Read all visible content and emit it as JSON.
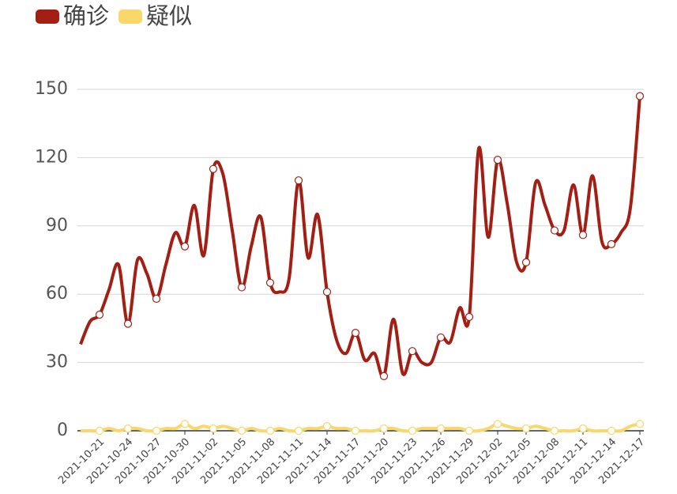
{
  "chart_data": {
    "type": "line",
    "categories": [
      null,
      null,
      "2021-10-21",
      null,
      null,
      "2021-10-24",
      null,
      null,
      "2021-10-27",
      null,
      null,
      "2021-10-30",
      null,
      null,
      "2021-11-02",
      null,
      null,
      "2021-11-05",
      null,
      null,
      "2021-11-08",
      null,
      null,
      "2021-11-11",
      null,
      null,
      "2021-11-14",
      null,
      null,
      "2021-11-17",
      null,
      null,
      "2021-11-20",
      null,
      null,
      "2021-11-23",
      null,
      null,
      "2021-11-26",
      null,
      null,
      "2021-11-29",
      null,
      null,
      "2021-12-02",
      null,
      null,
      "2021-12-05",
      null,
      null,
      "2021-12-08",
      null,
      null,
      "2021-12-11",
      null,
      null,
      "2021-12-14",
      null,
      null,
      "2021-12-17"
    ],
    "series": [
      {
        "name": "确诊",
        "color": "#a31f14",
        "values": [
          38,
          48,
          51,
          62,
          73,
          47,
          75,
          69,
          58,
          73,
          87,
          81,
          99,
          77,
          115,
          113,
          88,
          63,
          81,
          94,
          65,
          61,
          67,
          110,
          76,
          95,
          61,
          40,
          34,
          43,
          31,
          34,
          24,
          49,
          25,
          35,
          30,
          30,
          41,
          39,
          54,
          50,
          124,
          85,
          119,
          100,
          74,
          74,
          109,
          99,
          88,
          88,
          108,
          86,
          112,
          83,
          82,
          87,
          98,
          147
        ]
      },
      {
        "name": "疑似",
        "color": "#fad76a",
        "values": [
          0,
          0,
          0,
          1,
          0,
          1,
          1,
          0,
          0,
          1,
          1,
          3,
          1,
          2,
          1,
          2,
          1,
          0,
          1,
          0,
          0,
          1,
          0,
          0,
          1,
          1,
          2,
          1,
          1,
          0,
          0,
          0,
          1,
          1,
          0,
          0,
          1,
          1,
          1,
          1,
          1,
          0,
          0,
          1,
          3,
          2,
          1,
          1,
          2,
          1,
          0,
          0,
          0,
          1,
          0,
          0,
          0,
          0,
          2,
          3
        ]
      }
    ],
    "ylim": [
      0,
      150
    ],
    "yticks": [
      0,
      30,
      60,
      90,
      120,
      150
    ],
    "grid": true,
    "smooth": true
  }
}
